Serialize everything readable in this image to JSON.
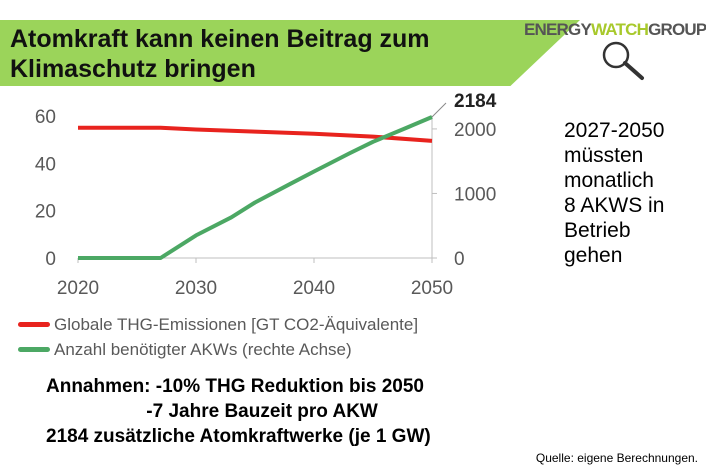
{
  "title": "Atomkraft kann keinen Beitrag zum Klimaschutz bringen",
  "logo": {
    "part1": "ENERGY",
    "part2": "WATCH",
    "part3": "GROUP",
    "icon": "magnifier-icon"
  },
  "colors": {
    "banner": "#9bd45a",
    "emissions": "#e8231e",
    "reactors": "#4ca864",
    "axis": "#bfbfbf",
    "ticktext": "#595959"
  },
  "side_note": [
    "2027-2050",
    "müssten",
    "monatlich",
    "8 AKWS in",
    "Betrieb",
    "gehen"
  ],
  "annotation_label": "2184",
  "legend": [
    {
      "label": "Globale THG-Emissionen [GT CO2-Äquivalente]"
    },
    {
      "label": "Anzahl benötigter AKWs  (rechte Achse)"
    }
  ],
  "assumptions": [
    "Annahmen: -10% THG Reduktion bis 2050",
    "                   -7 Jahre Bauzeit pro AKW",
    "2184 zusätzliche Atomkraftwerke (je 1 GW)"
  ],
  "source": "Quelle: eigene Berechnungen.",
  "chart_data": {
    "type": "line",
    "xlim": [
      2020,
      2050
    ],
    "xticks": [
      2020,
      2030,
      2040,
      2050
    ],
    "ylim_left": [
      0,
      60
    ],
    "yticks_left": [
      0,
      20,
      40,
      60
    ],
    "ylim_right": [
      0,
      2200
    ],
    "yticks_right": [
      0,
      1000,
      2000
    ],
    "grid": false,
    "series": [
      {
        "name": "Globale THG-Emissionen [GT CO2-Äquivalente]",
        "axis": "left",
        "x": [
          2020,
          2025,
          2027,
          2030,
          2035,
          2040,
          2045,
          2050
        ],
        "y": [
          55.0,
          55.0,
          55.0,
          54.3,
          53.4,
          52.5,
          51.3,
          49.5
        ]
      },
      {
        "name": "Anzahl benötigter AKWs  (rechte Achse)",
        "axis": "right",
        "x": [
          2020,
          2025,
          2027,
          2030,
          2033,
          2035,
          2038,
          2040,
          2043,
          2045,
          2048,
          2050
        ],
        "y": [
          0,
          0,
          0,
          350,
          630,
          860,
          1150,
          1340,
          1620,
          1800,
          2030,
          2184
        ]
      }
    ]
  }
}
